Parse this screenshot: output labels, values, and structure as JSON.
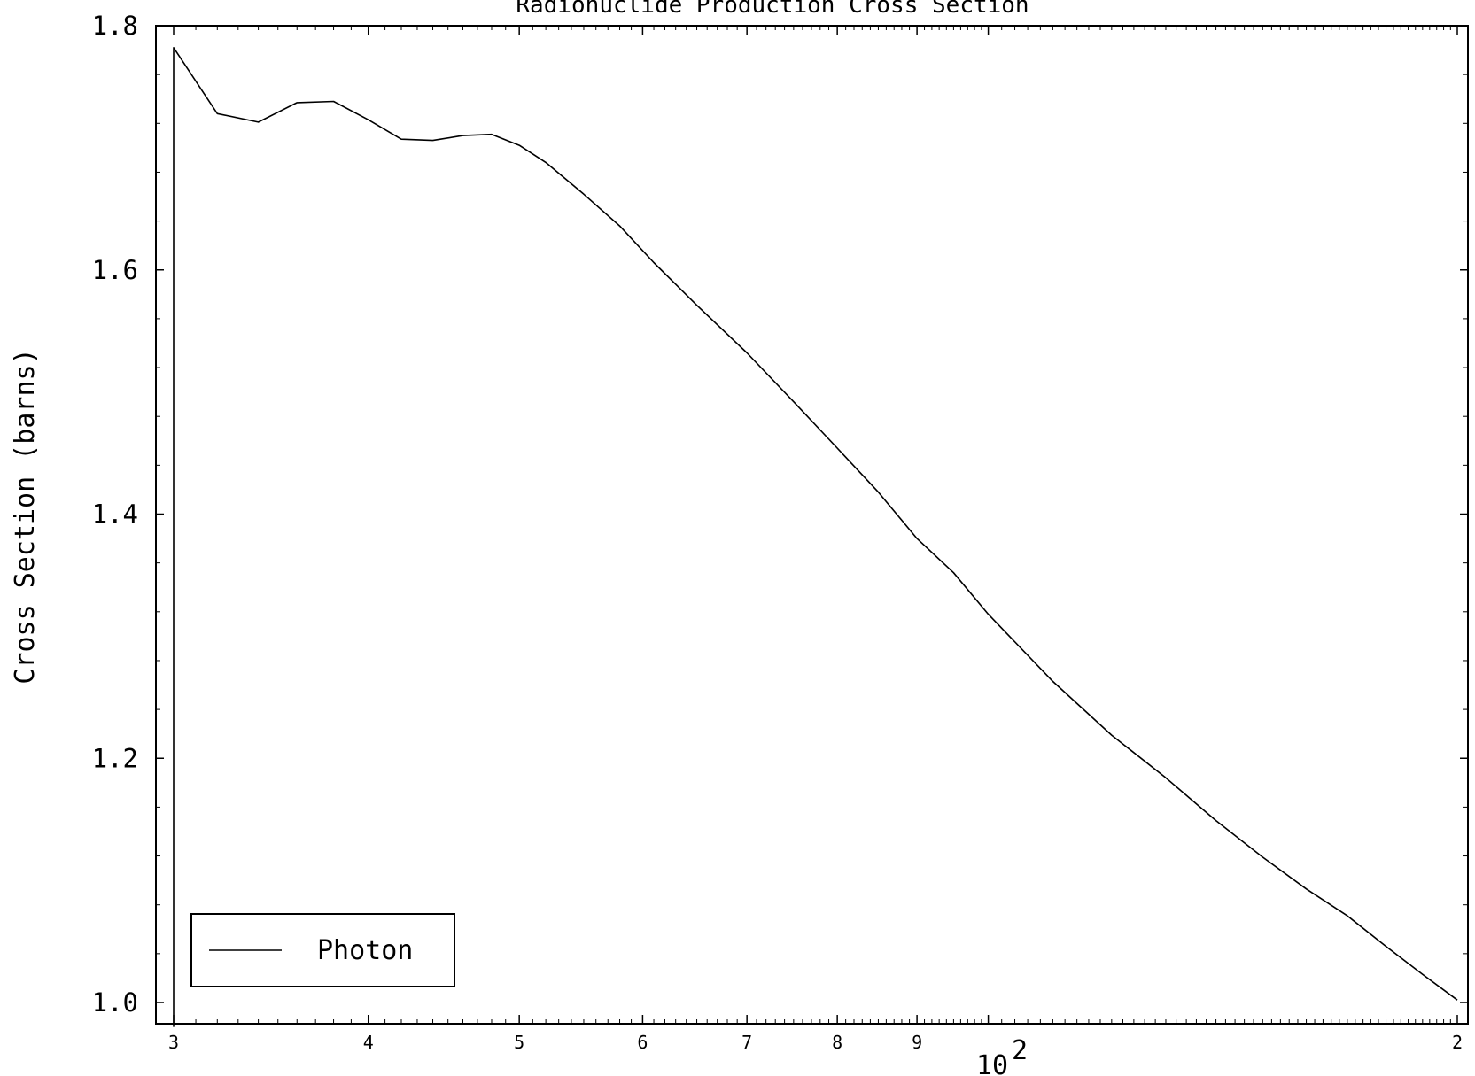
{
  "chart_data": {
    "type": "line",
    "title": "Radionuclide Production Cross Section",
    "xlabel": "",
    "ylabel": "Cross Section (barns)",
    "xscale": "log",
    "xlim": [
      30,
      200
    ],
    "ylim": [
      0.98,
      1.8
    ],
    "yticks": [
      1.0,
      1.2,
      1.4,
      1.6,
      1.8
    ],
    "ytick_labels": [
      "1.0",
      "1.2",
      "1.4",
      "1.6",
      "1.8"
    ],
    "xtick_labels": [
      {
        "value": 30,
        "label": "3"
      },
      {
        "value": 40,
        "label": "4"
      },
      {
        "value": 50,
        "label": "5"
      },
      {
        "value": 60,
        "label": "6"
      },
      {
        "value": 70,
        "label": "7"
      },
      {
        "value": 80,
        "label": "8"
      },
      {
        "value": 90,
        "label": "9"
      },
      {
        "value": 200,
        "label": "2"
      }
    ],
    "decade_label": {
      "value": 100,
      "base": "10",
      "exponent": "2"
    },
    "grid": false,
    "legend_position": "bottom-left",
    "series": [
      {
        "name": "Photon",
        "color": "#000000",
        "x": [
          30,
          30,
          32,
          34,
          36,
          38,
          40,
          42,
          44,
          46,
          48,
          50,
          52,
          55,
          58,
          61,
          65,
          70,
          75,
          80,
          85,
          90,
          95,
          100,
          110,
          120,
          130,
          140,
          150,
          160,
          170,
          180,
          190,
          200
        ],
        "y": [
          0.98,
          1.782,
          1.728,
          1.721,
          1.737,
          1.738,
          1.723,
          1.707,
          1.706,
          1.71,
          1.711,
          1.702,
          1.688,
          1.662,
          1.636,
          1.606,
          1.571,
          1.532,
          1.492,
          1.454,
          1.418,
          1.38,
          1.352,
          1.318,
          1.263,
          1.219,
          1.184,
          1.149,
          1.119,
          1.093,
          1.071,
          1.046,
          1.023,
          1.002
        ]
      }
    ]
  }
}
